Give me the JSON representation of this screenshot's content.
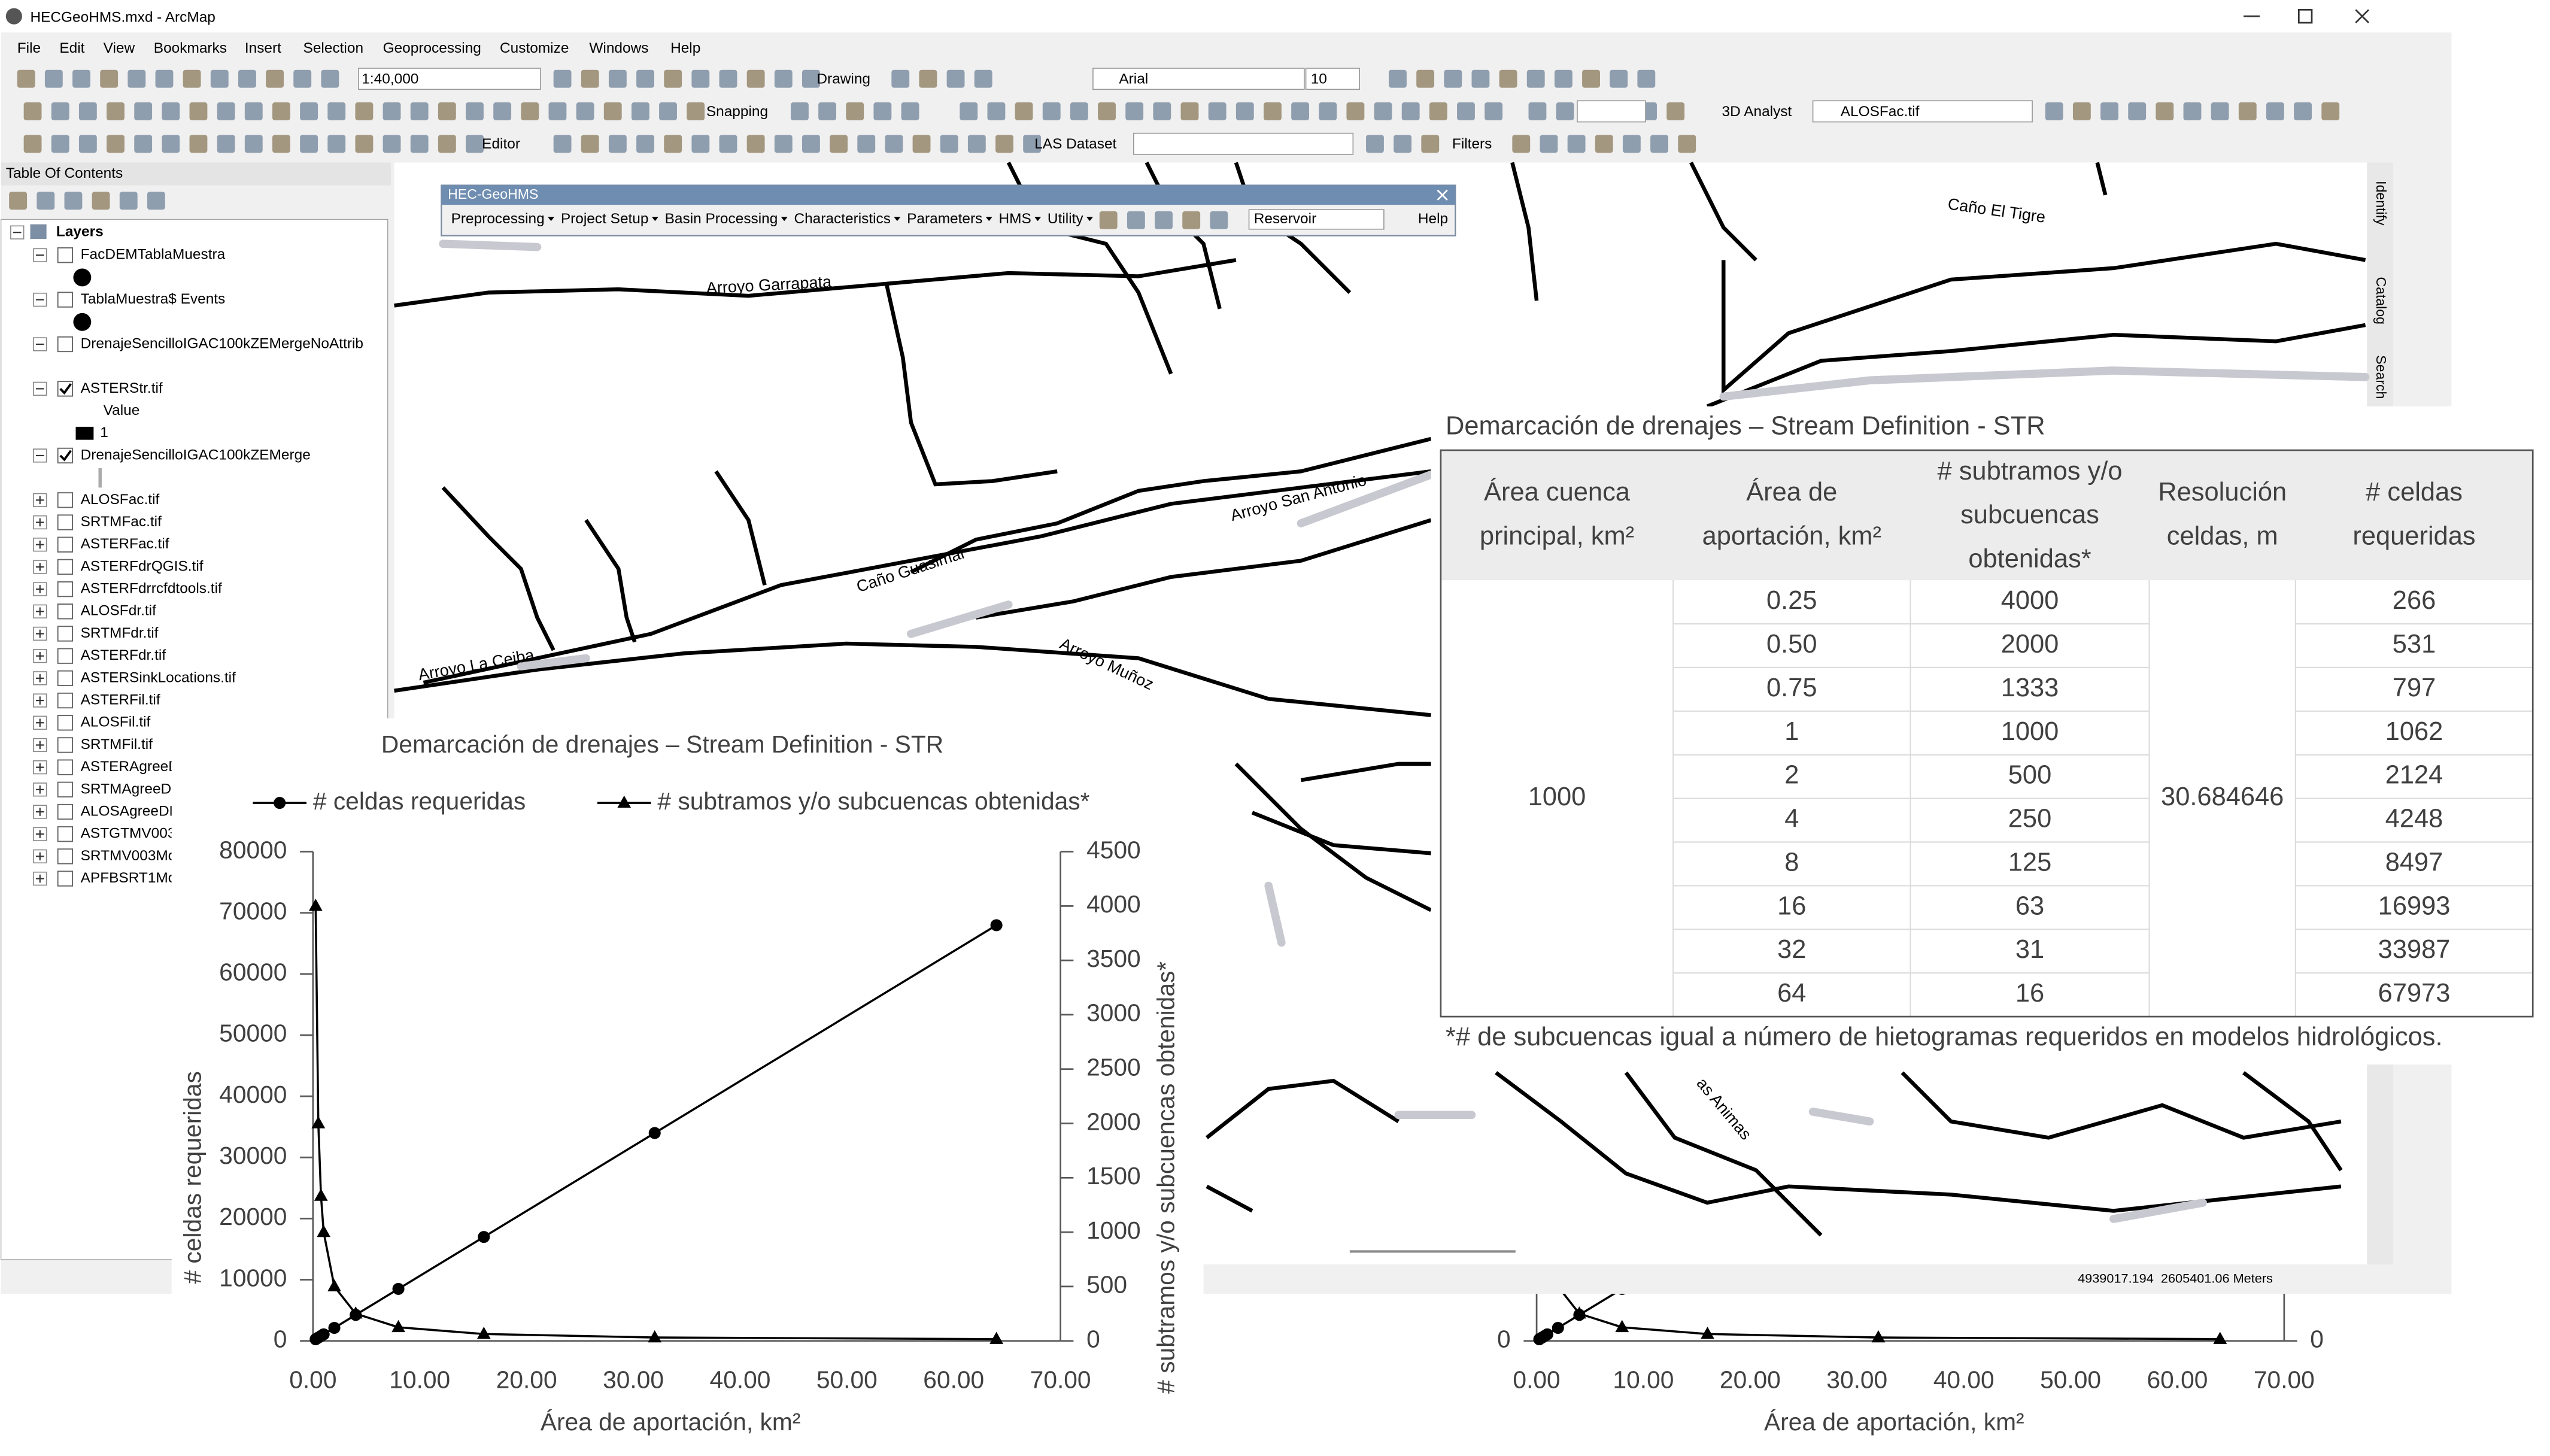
{
  "window": {
    "title": "HECGeoHMS.mxd - ArcMap"
  },
  "menu": [
    "File",
    "Edit",
    "View",
    "Bookmarks",
    "Insert",
    "Selection",
    "Geoprocessing",
    "Customize",
    "Windows",
    "Help"
  ],
  "toolbar": {
    "scale": "1:40,000",
    "drawing": "Drawing",
    "font": "Arial",
    "font_size": "10",
    "snapping": "Snapping",
    "editor": "Editor",
    "las_dataset": "LAS Dataset",
    "filters": "Filters",
    "analyst": "3D Analyst",
    "layer": "ALOSFac.tif"
  },
  "toc": {
    "title": "Table Of Contents",
    "root": "Layers",
    "layers": [
      {
        "name": "FacDEMTablaMuestra",
        "checked": false,
        "expanded": true,
        "symbol": "dot"
      },
      {
        "name": "TablaMuestra$ Events",
        "checked": false,
        "expanded": true,
        "symbol": "dot"
      },
      {
        "name": "DrenajeSencilloIGAC100kZEMergeNoAttrib",
        "checked": false,
        "expanded": true,
        "symbol": "blank"
      },
      {
        "name": "ASTERStr.tif",
        "checked": true,
        "expanded": true,
        "legend": [
          "Value",
          "1"
        ]
      },
      {
        "name": "DrenajeSencilloIGAC100kZEMerge",
        "checked": true,
        "expanded": true,
        "symbol": "line"
      },
      {
        "name": "ALOSFac.tif",
        "checked": false,
        "expanded": false
      },
      {
        "name": "SRTMFac.tif",
        "checked": false,
        "expanded": false
      },
      {
        "name": "ASTERFac.tif",
        "checked": false,
        "expanded": false
      },
      {
        "name": "ASTERFdrQGIS.tif",
        "checked": false,
        "expanded": false
      },
      {
        "name": "ASTERFdrrcfdtools.tif",
        "checked": false,
        "expanded": false
      },
      {
        "name": "ALOSFdr.tif",
        "checked": false,
        "expanded": false
      },
      {
        "name": "SRTMFdr.tif",
        "checked": false,
        "expanded": false
      },
      {
        "name": "ASTERFdr.tif",
        "checked": false,
        "expanded": false
      },
      {
        "name": "ASTERSinkLocations.tif",
        "checked": false,
        "expanded": false
      },
      {
        "name": "ASTERFil.tif",
        "checked": false,
        "expanded": false
      },
      {
        "name": "ALOSFil.tif",
        "checked": false,
        "expanded": false
      },
      {
        "name": "SRTMFil.tif",
        "checked": false,
        "expanded": false
      },
      {
        "name": "ASTERAgreeD",
        "checked": false,
        "expanded": false
      },
      {
        "name": "SRTMAgreeDE",
        "checked": false,
        "expanded": false
      },
      {
        "name": "ALOSAgreeDE",
        "checked": false,
        "expanded": false
      },
      {
        "name": "ASTGTMV003I",
        "checked": false,
        "expanded": false
      },
      {
        "name": "SRTMV003Mo",
        "checked": false,
        "expanded": false
      },
      {
        "name": "APFBSRT1Mo",
        "checked": false,
        "expanded": false
      }
    ]
  },
  "geohms": {
    "title": "HEC-GeoHMS",
    "menus": [
      "Preprocessing",
      "Project Setup",
      "Basin Processing",
      "Characteristics",
      "Parameters",
      "HMS",
      "Utility"
    ],
    "dropdown": "Reservoir",
    "help": "Help"
  },
  "map": {
    "labels": [
      "Arroyo Garrapata",
      "Caño El Tigre",
      "Arroyo San Antonio",
      "Caño Guasimal",
      "Arroyo La Ceiba",
      "Arroyo Muñoz",
      "as Animas"
    ]
  },
  "side_tabs": [
    "Identify",
    "Catalog",
    "Search"
  ],
  "status": {
    "coordinates": "4939017.194  2605401.06 Meters"
  },
  "table": {
    "title": "Demarcación de drenajes – Stream Definition - STR",
    "columns": [
      "Área cuenca principal, km²",
      "Área de aportación, km²",
      "# subtramos y/o subcuencas obtenidas*",
      "Resolución celdas, m",
      "# celdas requeridas"
    ],
    "main_area": 1000,
    "resolution": 30.684646,
    "rows": [
      [
        "0.25",
        4000,
        266
      ],
      [
        "0.50",
        2000,
        531
      ],
      [
        "0.75",
        1333,
        797
      ],
      [
        "1",
        1000,
        1062
      ],
      [
        "2",
        500,
        2124
      ],
      [
        "4",
        250,
        4248
      ],
      [
        "8",
        125,
        8497
      ],
      [
        "16",
        63,
        16993
      ],
      [
        "32",
        31,
        33987
      ],
      [
        "64",
        16,
        67973
      ]
    ],
    "footnote": "*# de subcuencas igual a número de hietogramas requeridos en modelos hidrológicos."
  },
  "chart_data": [
    {
      "type": "line",
      "title": "Demarcación de drenajes – Stream Definition - STR",
      "x": [
        0.25,
        0.5,
        0.75,
        1,
        2,
        4,
        8,
        16,
        32,
        64
      ],
      "series": [
        {
          "name": "# celdas requeridas",
          "color": "#000000",
          "marker": "circle",
          "values": [
            266,
            531,
            797,
            1062,
            2124,
            4248,
            8497,
            16993,
            33987,
            67973
          ]
        },
        {
          "name": "# subtramos y/o subcuencas obtenidas*",
          "color": "#000000",
          "marker": "triangle",
          "axis": "y2",
          "values": [
            4000,
            2000,
            1333,
            1000,
            500,
            250,
            125,
            63,
            31,
            16
          ]
        }
      ],
      "xlabel": "Área de aportación, km²",
      "ylabel": "# celdas requeridas",
      "y2label": "# subtramos y/o subcuencas obtenidas*",
      "xlim": [
        0,
        70
      ],
      "xticks": [
        {
          "value": 0,
          "label": "0.00"
        },
        {
          "value": 10,
          "label": "10.00"
        },
        {
          "value": 20,
          "label": "20.00"
        },
        {
          "value": 30,
          "label": "30.00"
        },
        {
          "value": 40,
          "label": "40.00"
        },
        {
          "value": 50,
          "label": "50.00"
        },
        {
          "value": 60,
          "label": "60.00"
        },
        {
          "value": 70,
          "label": "70.00"
        }
      ],
      "ylim": [
        0,
        80000
      ],
      "yticks": [
        0,
        10000,
        20000,
        30000,
        40000,
        50000,
        60000,
        70000,
        80000
      ],
      "y2lim": [
        0,
        4500
      ],
      "y2ticks": [
        0,
        500,
        1000,
        1500,
        2000,
        2500,
        3000,
        3500,
        4000,
        4500
      ],
      "grid": false
    },
    {
      "type": "line",
      "x": [
        0.25,
        0.5,
        0.75,
        1,
        2,
        4,
        8,
        16,
        32,
        64
      ],
      "series": [
        {
          "color": "#000000",
          "marker": "circle",
          "values": [
            266,
            531,
            797,
            1062,
            2124,
            4248,
            8497,
            16993,
            33987,
            67973
          ]
        },
        {
          "color": "#000000",
          "marker": "triangle",
          "axis": "y2",
          "values": [
            4000,
            2000,
            1333,
            1000,
            500,
            250,
            125,
            63,
            31,
            16
          ]
        }
      ],
      "xlabel": "Área de aportación, km²",
      "xlim": [
        0,
        70
      ],
      "xticks": [
        {
          "value": 0,
          "label": "0.00"
        },
        {
          "value": 10,
          "label": "10.00"
        },
        {
          "value": 20,
          "label": "20.00"
        },
        {
          "value": 30,
          "label": "30.00"
        },
        {
          "value": 40,
          "label": "40.00"
        },
        {
          "value": 50,
          "label": "50.00"
        },
        {
          "value": 60,
          "label": "60.00"
        },
        {
          "value": 70,
          "label": "70.00"
        }
      ],
      "ylim": [
        0,
        80000
      ],
      "yticks": [
        0
      ],
      "y2lim": [
        0,
        4500
      ],
      "y2ticks": [
        0
      ],
      "grid": false
    }
  ]
}
